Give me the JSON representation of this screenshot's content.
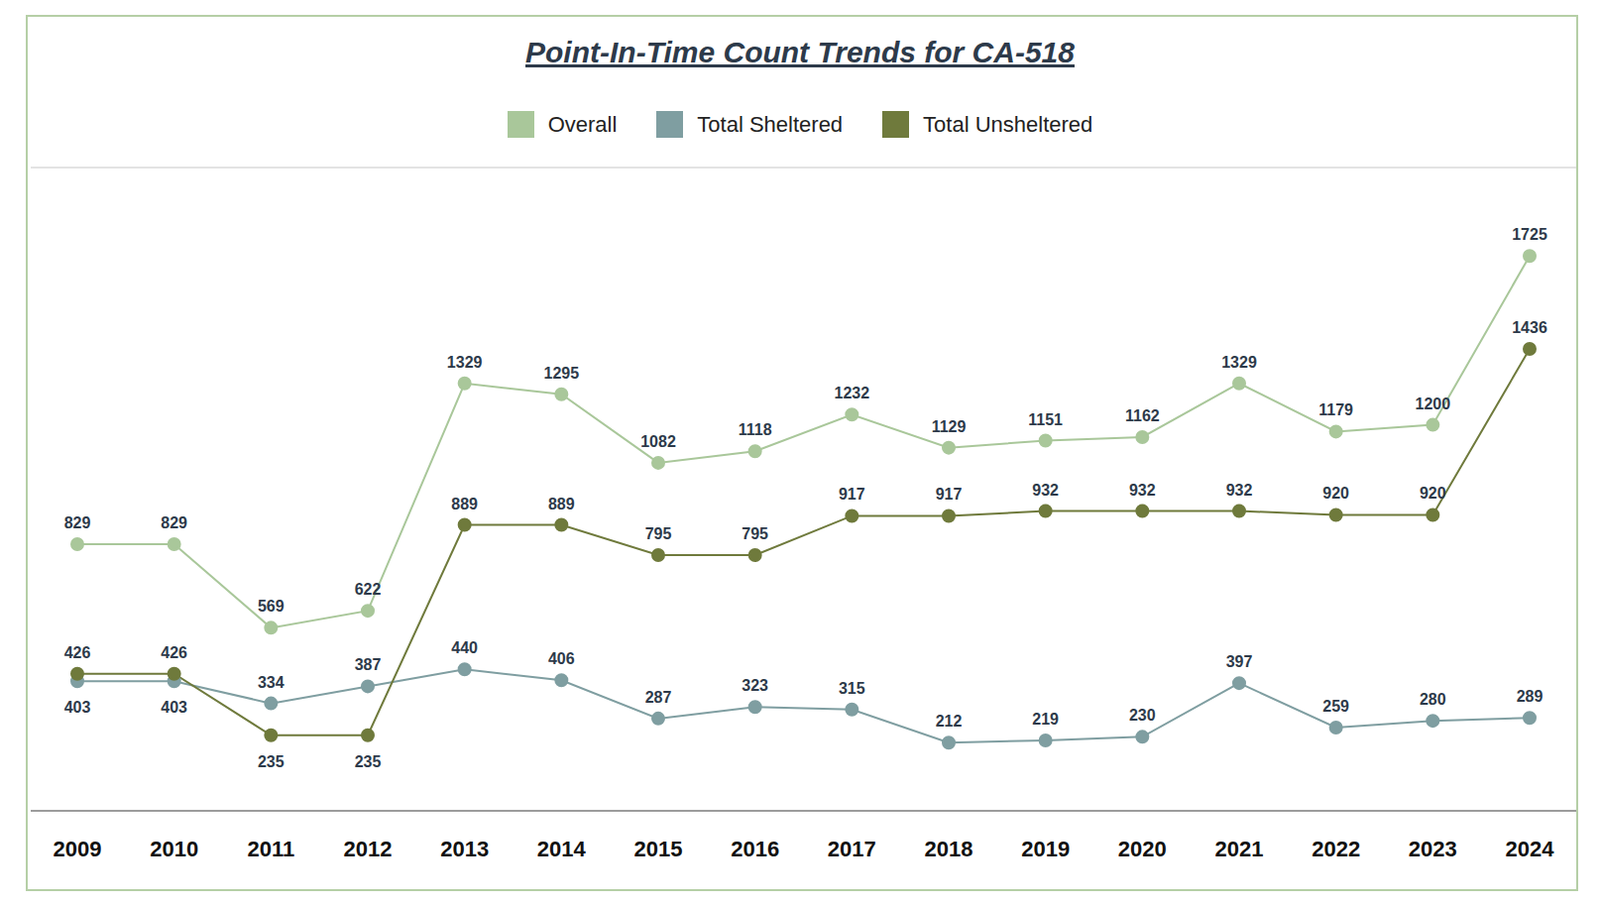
{
  "chart_data": {
    "type": "line",
    "title": "Point-In-Time Count Trends for CA-518",
    "categories": [
      "2009",
      "2010",
      "2011",
      "2012",
      "2013",
      "2014",
      "2015",
      "2016",
      "2017",
      "2018",
      "2019",
      "2020",
      "2021",
      "2022",
      "2023",
      "2024"
    ],
    "series": [
      {
        "name": "Overall",
        "color": "#a9c79a",
        "values": [
          829,
          829,
          569,
          622,
          1329,
          1295,
          1082,
          1118,
          1232,
          1129,
          1151,
          1162,
          1329,
          1179,
          1200,
          1725
        ]
      },
      {
        "name": "Total Sheltered",
        "color": "#7f9ea1",
        "values": [
          403,
          403,
          334,
          387,
          440,
          406,
          287,
          323,
          315,
          212,
          219,
          230,
          397,
          259,
          280,
          289
        ]
      },
      {
        "name": "Total Unsheltered",
        "color": "#6f7a3c",
        "values": [
          426,
          426,
          235,
          235,
          889,
          889,
          795,
          795,
          917,
          917,
          932,
          932,
          932,
          920,
          920,
          1436
        ]
      }
    ],
    "ylim": [
      0,
      2000
    ],
    "yticks": [
      0,
      500,
      1000,
      1500,
      2000
    ],
    "grid": true,
    "legend": "top",
    "data_labels": true,
    "tick_labels": "x",
    "marker": "circle",
    "line_style": "solid"
  }
}
